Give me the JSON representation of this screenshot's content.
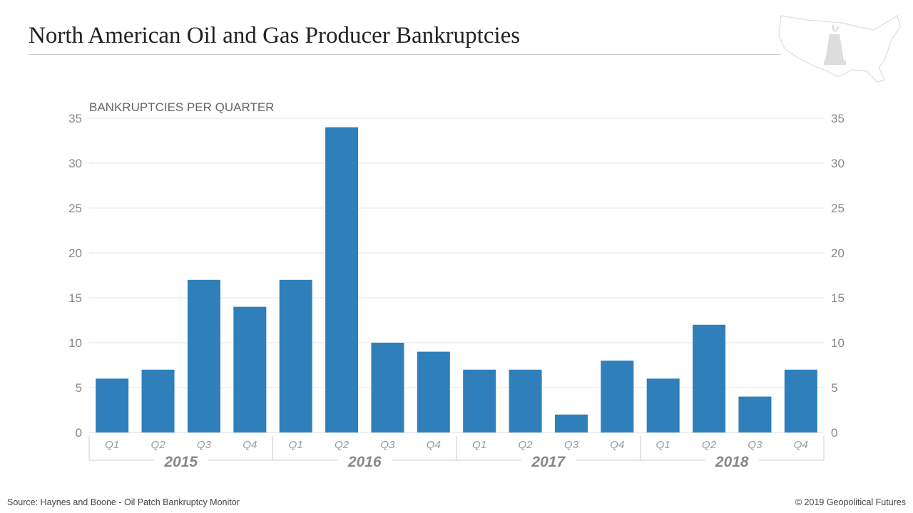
{
  "header": {
    "title": "North American Oil and Gas Producer Bankruptcies"
  },
  "footer": {
    "source": "Source:  Haynes and Boone - Oil Patch Bankruptcy Monitor",
    "copyright": "© 2019 Geopolitical Futures"
  },
  "logo": {
    "icon": "us-map-oil-derrick-icon"
  },
  "colors": {
    "bar": "#2e7fba",
    "grid": "#e6e6e6",
    "axis_text": "#888888"
  },
  "chart_data": {
    "type": "bar",
    "title": "North American Oil and Gas Producer Bankruptcies",
    "ylabel": "BANKRUPTCIES PER QUARTER",
    "xlabel": "",
    "ylim": [
      0,
      35
    ],
    "yticks": [
      0,
      5,
      10,
      15,
      20,
      25,
      30,
      35
    ],
    "grid": true,
    "legend": "none",
    "categories": [
      "Q1",
      "Q2",
      "Q3",
      "Q4",
      "Q1",
      "Q2",
      "Q3",
      "Q4",
      "Q1",
      "Q2",
      "Q3",
      "Q4",
      "Q1",
      "Q2",
      "Q3",
      "Q4"
    ],
    "groups": [
      "2015",
      "2016",
      "2017",
      "2018"
    ],
    "values": [
      6,
      7,
      17,
      14,
      17,
      34,
      10,
      9,
      7,
      7,
      2,
      8,
      6,
      12,
      4,
      7
    ]
  }
}
